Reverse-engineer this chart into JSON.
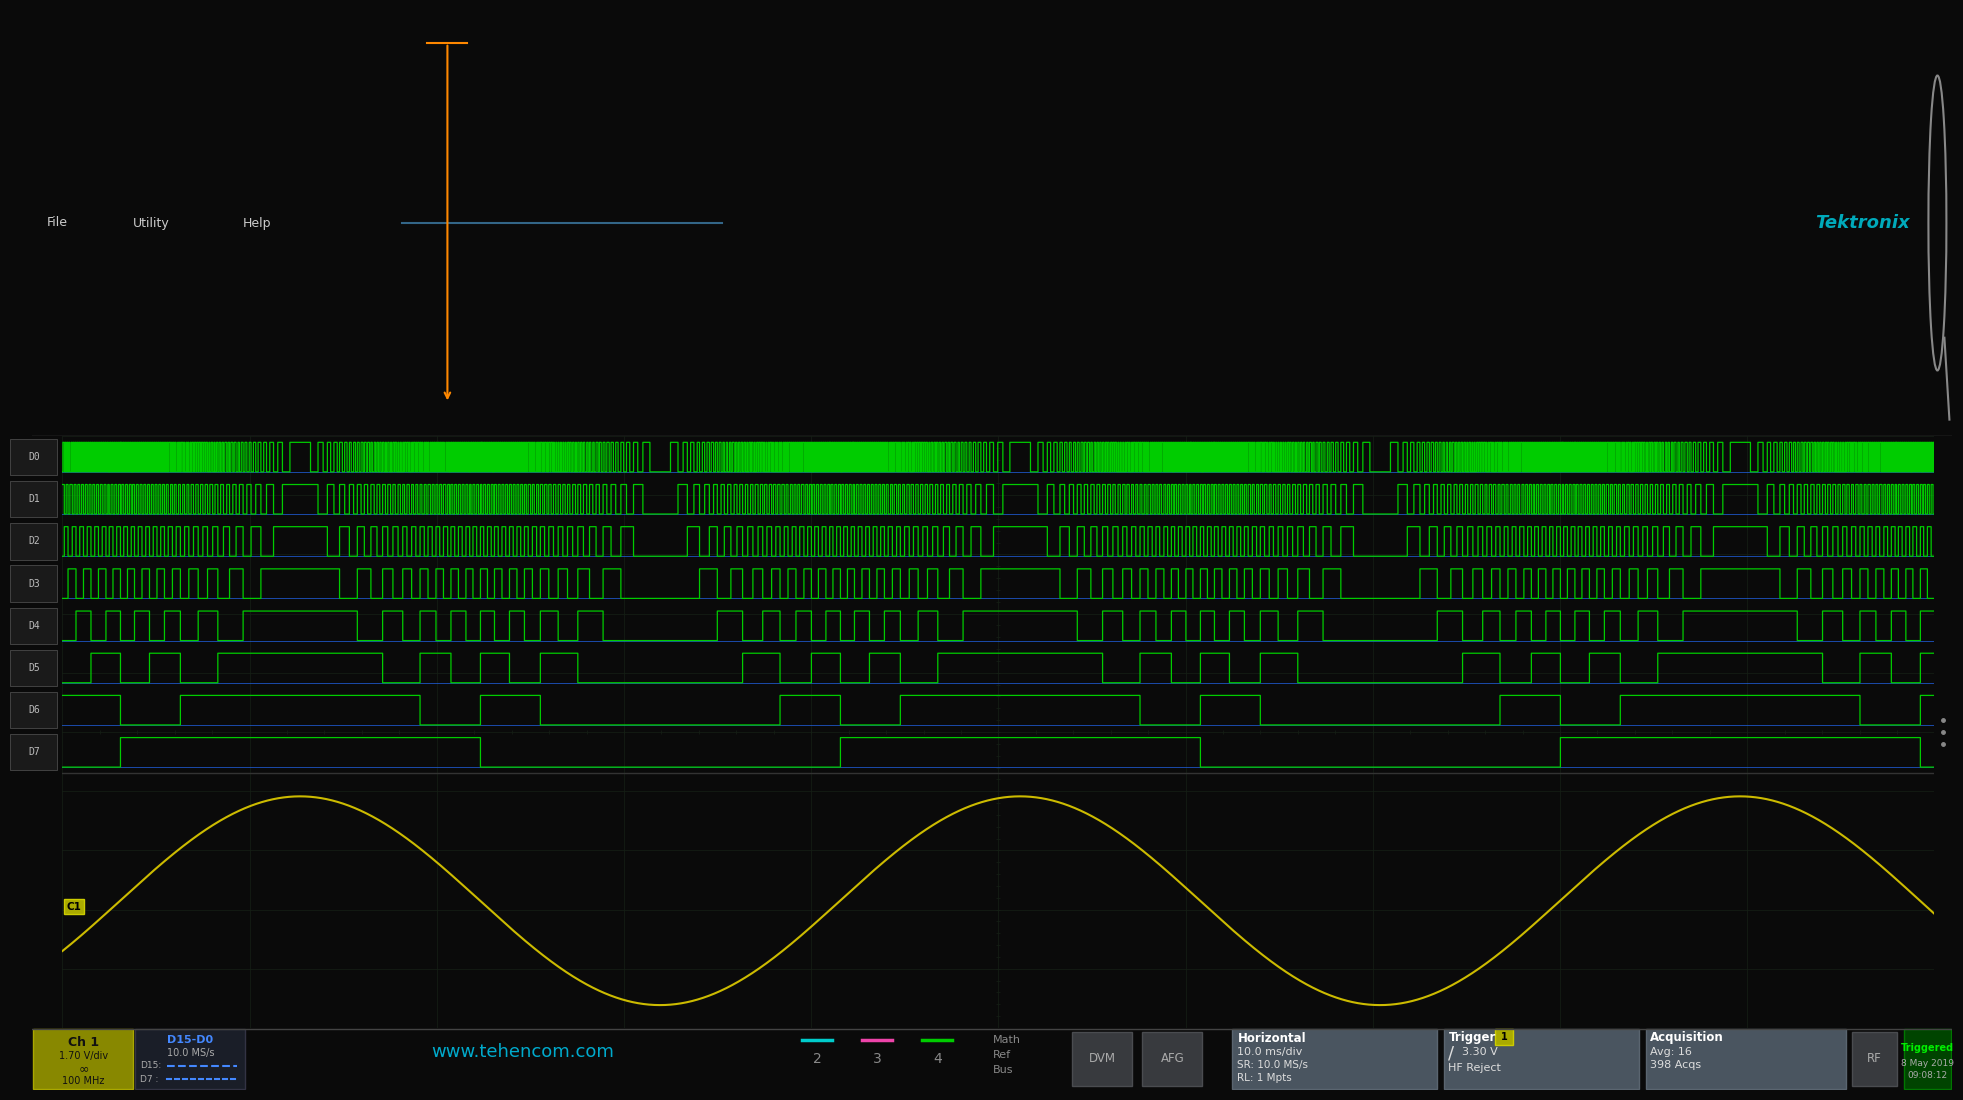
{
  "bg_color": "#0a0a0a",
  "screen_bg": "#000000",
  "top_bar_color": "#1e1e1e",
  "bottom_bar_color": "#2a2d30",
  "grid_color": "#1a2a1a",
  "green": "#00cc00",
  "blue": "#2266ee",
  "white_signal": "#cccccc",
  "analog_color": "#ccbb00",
  "label_fg": "#aaaaaa",
  "num_digital": 8,
  "digital_labels": [
    "D0",
    "D1",
    "D2",
    "D3",
    "D4",
    "D5",
    "D6",
    "D7"
  ],
  "watermark": "www.tehencom.com",
  "tektronix_color": "#00aabb",
  "triggered_color": "#00ee00",
  "sine_freq": 2.6,
  "sine_phase": -0.08,
  "ch1_color": "#ccbb00",
  "bottom_info": {
    "ch1_label": "Ch 1",
    "ch1_vdiv": "1.70 V/div",
    "ch1_bw": "100 MHz",
    "dig_label": "D15-D0",
    "dig_sr": "10.0 MS/s",
    "dig_d15": "D15:",
    "dig_d7": "D7 :",
    "horizontal_label": "Horizontal",
    "h_div": "10.0 ms/div",
    "h_sr": "SR: 10.0 MS/s",
    "h_rl": "RL: 1 Mpts",
    "trigger_label": "Trigger",
    "trig_ch": "1",
    "trig_v": "3.30 V",
    "trig_hf": "HF Reject",
    "acq_label": "Acquisition",
    "acq_avg": "Avg: 16",
    "acq_acqs": "398 Acqs",
    "date": "8 May 2019",
    "time_str": "09:08:12"
  }
}
